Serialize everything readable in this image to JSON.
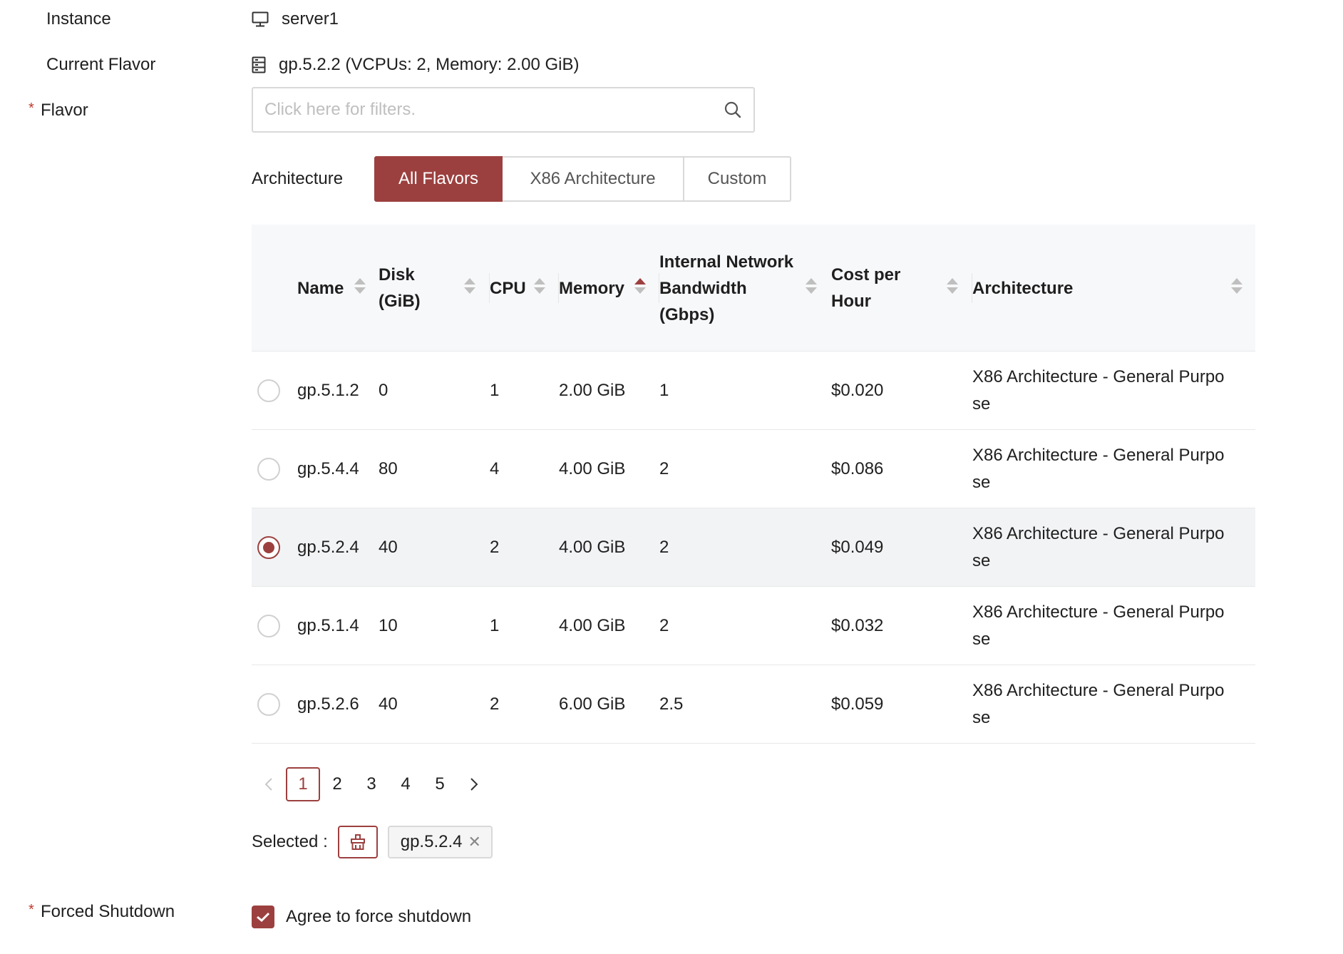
{
  "form": {
    "instance_label": "Instance",
    "instance_value": "server1",
    "current_flavor_label": "Current Flavor",
    "current_flavor_value": "gp.5.2.2 (VCPUs: 2, Memory: 2.00 GiB)",
    "flavor_label": "Flavor",
    "required_mark": "*",
    "filter_placeholder": "Click here for filters.",
    "forced_shutdown_label": "Forced Shutdown",
    "forced_shutdown_checkbox_label": "Agree to force shutdown",
    "forced_shutdown_checked": true
  },
  "architecture": {
    "label": "Architecture",
    "options": [
      "All Flavors",
      "X86 Architecture",
      "Custom"
    ],
    "active": "All Flavors"
  },
  "table": {
    "headers": {
      "name": "Name",
      "disk_line1": "Disk",
      "disk_line2": "(GiB)",
      "cpu": "CPU",
      "memory": "Memory",
      "bw_line1": "Internal Network",
      "bw_line2": "Bandwidth",
      "bw_line3": "(Gbps)",
      "cost_line1": "Cost per",
      "cost_line2": "Hour",
      "architecture": "Architecture"
    },
    "sorted_column": "Memory",
    "sort_direction": "ascending",
    "rows": [
      {
        "name": "gp.5.1.2",
        "disk": "0",
        "cpu": "1",
        "memory": "2.00 GiB",
        "bandwidth": "1",
        "cost": "$0.020",
        "arch_line1": "X86 Architecture - General Purpo",
        "arch_line2": "se",
        "selected": false
      },
      {
        "name": "gp.5.4.4",
        "disk": "80",
        "cpu": "4",
        "memory": "4.00 GiB",
        "bandwidth": "2",
        "cost": "$0.086",
        "arch_line1": "X86 Architecture - General Purpo",
        "arch_line2": "se",
        "selected": false
      },
      {
        "name": "gp.5.2.4",
        "disk": "40",
        "cpu": "2",
        "memory": "4.00 GiB",
        "bandwidth": "2",
        "cost": "$0.049",
        "arch_line1": "X86 Architecture - General Purpo",
        "arch_line2": "se",
        "selected": true
      },
      {
        "name": "gp.5.1.4",
        "disk": "10",
        "cpu": "1",
        "memory": "4.00 GiB",
        "bandwidth": "2",
        "cost": "$0.032",
        "arch_line1": "X86 Architecture - General Purpo",
        "arch_line2": "se",
        "selected": false
      },
      {
        "name": "gp.5.2.6",
        "disk": "40",
        "cpu": "2",
        "memory": "6.00 GiB",
        "bandwidth": "2.5",
        "cost": "$0.059",
        "arch_line1": "X86 Architecture - General Purpo",
        "arch_line2": "se",
        "selected": false
      }
    ]
  },
  "pagination": {
    "pages": [
      "1",
      "2",
      "3",
      "4",
      "5"
    ],
    "current": "1"
  },
  "selection": {
    "label": "Selected :",
    "tag": "gp.5.2.4",
    "tag_close": "✕"
  },
  "icons": {
    "instance": "monitor-icon",
    "flavor": "server-icon",
    "search": "search-icon",
    "clear_selection": "clear-selection-icon",
    "prev": "chevron-left-icon",
    "next": "chevron-right-icon",
    "check": "check-icon"
  },
  "colors": {
    "accent": "#9c403f",
    "required": "#c0392b",
    "header_bg": "#f7f8fa",
    "selected_row_bg": "#f2f3f5",
    "border": "#d9d9d9"
  }
}
